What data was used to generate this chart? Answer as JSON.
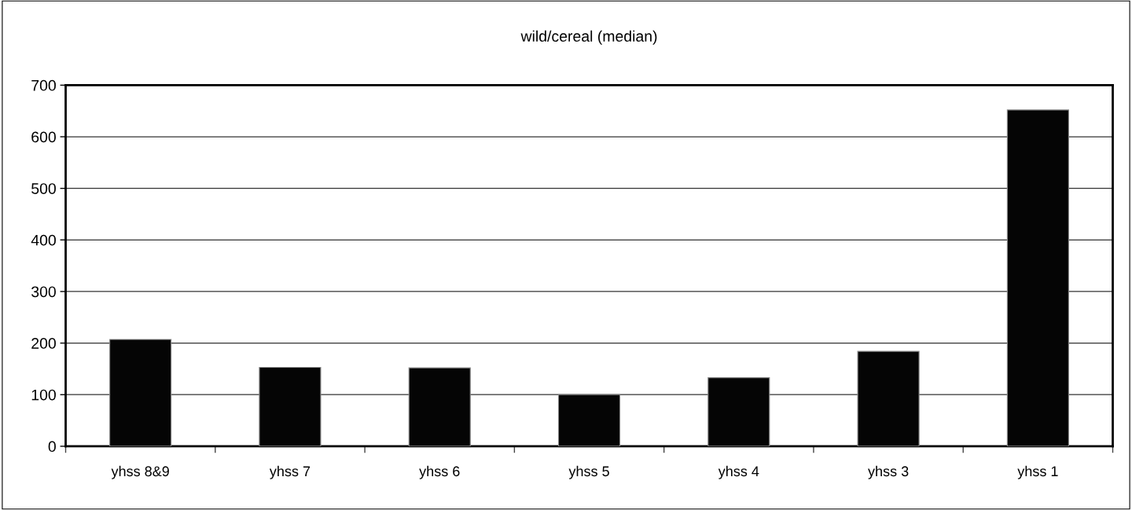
{
  "chart_data": {
    "type": "bar",
    "title": "wild/cereal (median)",
    "categories": [
      "yhss 8&9",
      "yhss 7",
      "yhss 6",
      "yhss 5",
      "yhss 4",
      "yhss 3",
      "yhss 1"
    ],
    "values": [
      207,
      153,
      152,
      100,
      133,
      184,
      652
    ],
    "color": "#050505",
    "ylim": [
      0,
      700
    ],
    "yticks": [
      0,
      100,
      200,
      300,
      400,
      500,
      600,
      700
    ],
    "grid": "y"
  }
}
